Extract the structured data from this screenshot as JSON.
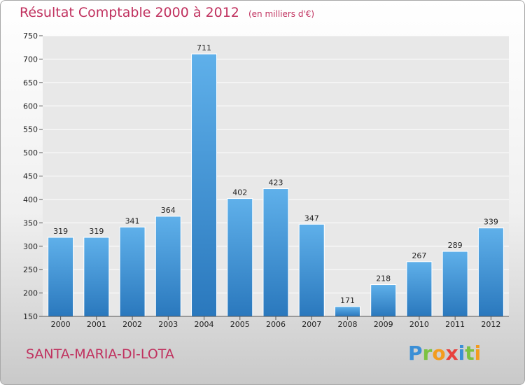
{
  "header": {
    "title": "Résultat Comptable 2000 à 2012",
    "unit": "(en milliers d'€)"
  },
  "commune": "SANTA-MARIA-DI-LOTA",
  "logo": {
    "letters": [
      "P",
      "r",
      "o",
      "x",
      "i",
      "t",
      "i"
    ],
    "colors": [
      "#3b8fd6",
      "#7cc242",
      "#f39c1e",
      "#e8403c",
      "#3b8fd6",
      "#7cc242",
      "#f39c1e"
    ]
  },
  "colors": {
    "bar_light": "#5fb0ea",
    "bar_dark": "#2a78bd",
    "plot_bg": "#e8e8e8",
    "grid": "#ffffff",
    "text_accent": "#c0305e"
  },
  "chart_data": {
    "type": "bar",
    "title": "Résultat Comptable 2000 à 2012",
    "subtitle": "(en milliers d'€)",
    "categories": [
      "2000",
      "2001",
      "2002",
      "2003",
      "2004",
      "2005",
      "2006",
      "2007",
      "2008",
      "2009",
      "2010",
      "2011",
      "2012"
    ],
    "values": [
      319,
      319,
      341,
      364,
      711,
      402,
      423,
      347,
      171,
      218,
      267,
      289,
      339
    ],
    "ylim": [
      150,
      750
    ],
    "yticks": [
      150,
      200,
      250,
      300,
      350,
      400,
      450,
      500,
      550,
      600,
      650,
      700,
      750
    ],
    "grid": true,
    "legend": "none"
  }
}
